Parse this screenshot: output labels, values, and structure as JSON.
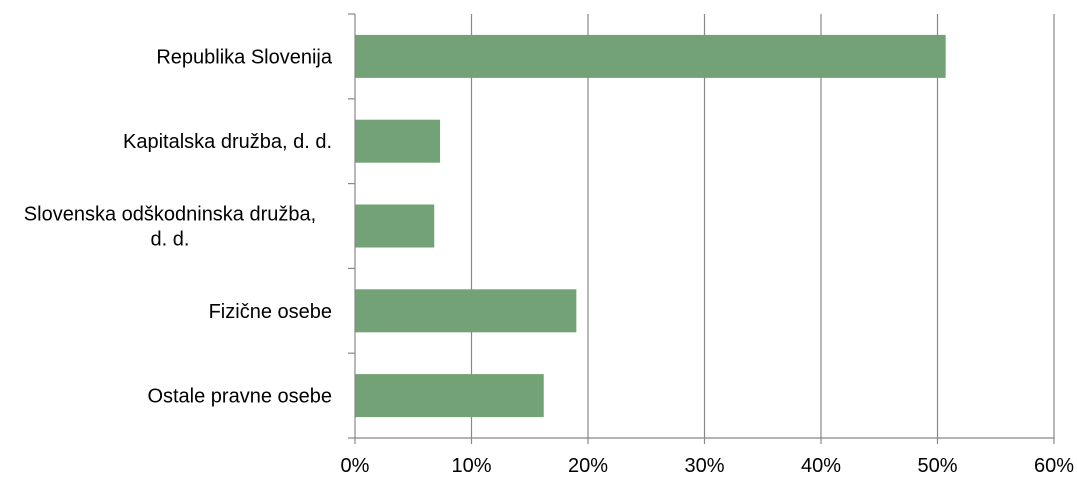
{
  "chart_data": {
    "type": "bar",
    "orientation": "horizontal",
    "categories": [
      "Republika Slovenija",
      "Kapitalska družba, d. d.",
      "Slovenska odškodninska družba, d. d.",
      "Fizične osebe",
      "Ostale pravne osebe"
    ],
    "category_display_lines": [
      [
        "Republika Slovenija"
      ],
      [
        "Kapitalska družba, d. d."
      ],
      [
        "Slovenska odškodninska družba,",
        "d. d."
      ],
      [
        "Fizične osebe"
      ],
      [
        "Ostale pravne osebe"
      ]
    ],
    "values": [
      50.7,
      7.3,
      6.8,
      19.0,
      16.2
    ],
    "xlim": [
      0,
      60
    ],
    "x_ticks": [
      0,
      10,
      20,
      30,
      40,
      50,
      60
    ],
    "x_tick_labels": [
      "0%",
      "10%",
      "20%",
      "30%",
      "40%",
      "50%",
      "60%"
    ],
    "title": "",
    "xlabel": "",
    "ylabel": "",
    "grid": "vertical",
    "legend": "none",
    "colors": {
      "bar": "#72a276",
      "grid": "#888888",
      "axis": "#888888",
      "text": "#000000"
    }
  }
}
